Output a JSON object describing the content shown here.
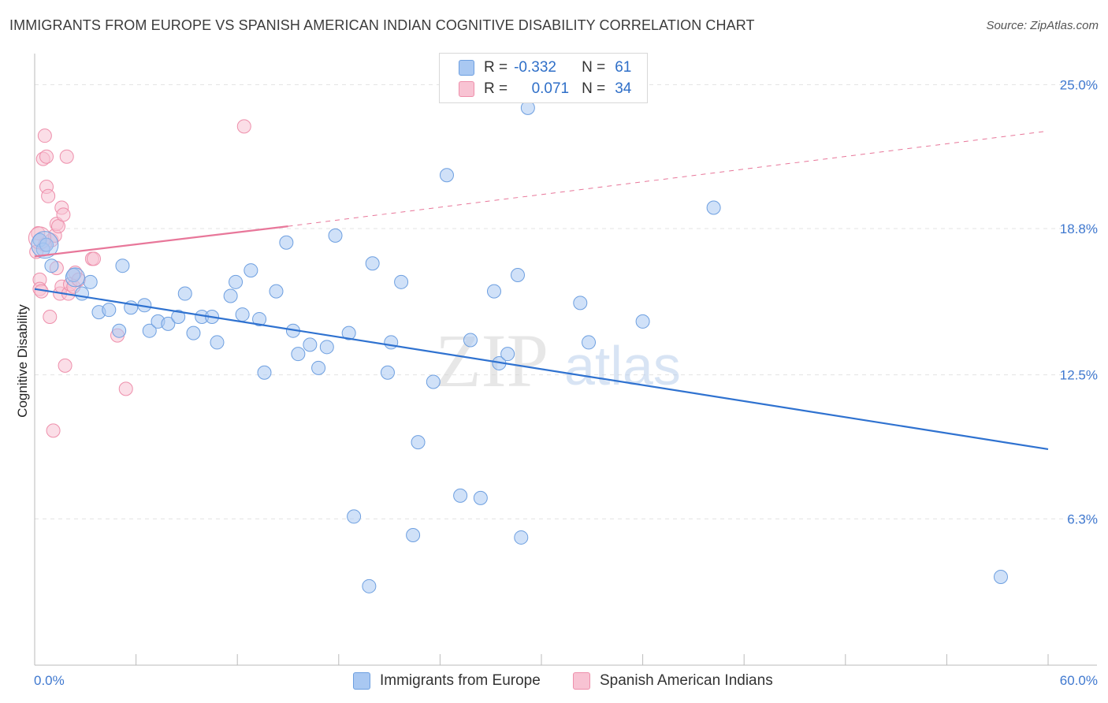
{
  "title": "IMMIGRANTS FROM EUROPE VS SPANISH AMERICAN INDIAN COGNITIVE DISABILITY CORRELATION CHART",
  "source": "Source: ZipAtlas.com",
  "watermark": {
    "zip": "ZIP",
    "atlas": "atlas"
  },
  "legend": {
    "rows": [
      {
        "r_label": "R =",
        "r_value": "-0.332",
        "n_label": "N =",
        "n_value": "61",
        "color": "#a9c8f2",
        "border": "#6d9fe0"
      },
      {
        "r_label": "R =",
        "r_value": "0.071",
        "n_label": "N =",
        "n_value": "34",
        "color": "#f8c3d3",
        "border": "#ee8fab"
      }
    ]
  },
  "bottom_legend": [
    {
      "label": "Immigrants from Europe",
      "color": "#a9c8f2",
      "border": "#6d9fe0"
    },
    {
      "label": "Spanish American Indians",
      "color": "#f8c3d3",
      "border": "#ee8fab"
    }
  ],
  "chart_data": {
    "type": "scatter",
    "title": "IMMIGRANTS FROM EUROPE VS SPANISH AMERICAN INDIAN COGNITIVE DISABILITY CORRELATION CHART",
    "xlabel": "",
    "ylabel": "Cognitive Disability",
    "xlim": [
      0,
      60
    ],
    "ylim": [
      0,
      26.2
    ],
    "x_tick_labels": [
      "0.0%",
      "60.0%"
    ],
    "y_ticks": [
      6.3,
      12.5,
      18.8,
      25.0
    ],
    "y_tick_labels": [
      "6.3%",
      "12.5%",
      "18.8%",
      "25.0%"
    ],
    "grid": true,
    "legend_position": "top-center",
    "series": [
      {
        "name": "Immigrants from Europe",
        "color": "#a9c8f2",
        "stroke": "#6d9fe0",
        "trend": {
          "x": [
            0,
            60
          ],
          "y": [
            16.2,
            9.3
          ],
          "color": "#2f72d0",
          "dashed_extension": false
        },
        "points": [
          [
            0.3,
            18.3
          ],
          [
            0.5,
            17.9
          ],
          [
            0.7,
            18.1
          ],
          [
            1.0,
            17.2
          ],
          [
            2.3,
            16.8
          ],
          [
            3.3,
            16.5
          ],
          [
            2.8,
            16.0
          ],
          [
            3.8,
            15.2
          ],
          [
            4.4,
            15.3
          ],
          [
            5.0,
            14.4
          ],
          [
            5.2,
            17.2
          ],
          [
            5.7,
            15.4
          ],
          [
            6.5,
            15.5
          ],
          [
            6.8,
            14.4
          ],
          [
            7.3,
            14.8
          ],
          [
            7.9,
            14.7
          ],
          [
            8.5,
            15.0
          ],
          [
            8.9,
            16.0
          ],
          [
            9.4,
            14.3
          ],
          [
            9.9,
            15.0
          ],
          [
            10.5,
            15.0
          ],
          [
            10.8,
            13.9
          ],
          [
            11.6,
            15.9
          ],
          [
            11.9,
            16.5
          ],
          [
            12.3,
            15.1
          ],
          [
            12.8,
            17.0
          ],
          [
            13.3,
            14.9
          ],
          [
            13.6,
            12.6
          ],
          [
            14.3,
            16.1
          ],
          [
            14.9,
            18.2
          ],
          [
            15.3,
            14.4
          ],
          [
            15.6,
            13.4
          ],
          [
            16.3,
            13.8
          ],
          [
            16.8,
            12.8
          ],
          [
            17.3,
            13.7
          ],
          [
            17.8,
            18.5
          ],
          [
            18.6,
            14.3
          ],
          [
            18.9,
            6.4
          ],
          [
            19.8,
            3.4
          ],
          [
            20.0,
            17.3
          ],
          [
            20.9,
            12.6
          ],
          [
            21.1,
            13.9
          ],
          [
            21.7,
            16.5
          ],
          [
            22.4,
            5.6
          ],
          [
            22.7,
            9.6
          ],
          [
            23.6,
            12.2
          ],
          [
            24.4,
            21.1
          ],
          [
            25.2,
            7.3
          ],
          [
            25.8,
            14.0
          ],
          [
            26.4,
            7.2
          ],
          [
            27.2,
            16.1
          ],
          [
            27.5,
            13.0
          ],
          [
            28.0,
            13.4
          ],
          [
            28.6,
            16.8
          ],
          [
            28.8,
            5.5
          ],
          [
            29.2,
            24.0
          ],
          [
            32.3,
            15.6
          ],
          [
            32.8,
            13.9
          ],
          [
            36.0,
            14.8
          ],
          [
            40.2,
            19.7
          ],
          [
            57.2,
            3.8
          ]
        ]
      },
      {
        "name": "Spanish American Indians",
        "color": "#f8c3d3",
        "stroke": "#ee8fab",
        "trend": {
          "x": [
            0,
            15
          ],
          "y": [
            17.6,
            18.9
          ],
          "color": "#e8779a",
          "dashed_extension": true,
          "dashed_to": [
            60,
            23.0
          ]
        },
        "points": [
          [
            0.1,
            17.8
          ],
          [
            0.2,
            18.6
          ],
          [
            0.3,
            16.6
          ],
          [
            0.3,
            16.2
          ],
          [
            0.4,
            16.1
          ],
          [
            0.5,
            21.8
          ],
          [
            0.6,
            22.8
          ],
          [
            0.7,
            21.9
          ],
          [
            0.7,
            20.6
          ],
          [
            0.8,
            20.2
          ],
          [
            0.9,
            15.0
          ],
          [
            1.0,
            18.3
          ],
          [
            1.1,
            10.1
          ],
          [
            1.2,
            18.5
          ],
          [
            1.3,
            17.1
          ],
          [
            1.3,
            19.0
          ],
          [
            1.4,
            18.9
          ],
          [
            1.5,
            16.0
          ],
          [
            1.6,
            16.3
          ],
          [
            1.6,
            19.7
          ],
          [
            1.7,
            19.4
          ],
          [
            1.8,
            12.9
          ],
          [
            1.9,
            21.9
          ],
          [
            2.0,
            16.0
          ],
          [
            2.1,
            16.4
          ],
          [
            2.3,
            16.3
          ],
          [
            2.4,
            16.9
          ],
          [
            2.6,
            16.6
          ],
          [
            3.4,
            17.5
          ],
          [
            3.5,
            17.5
          ],
          [
            4.9,
            14.2
          ],
          [
            5.4,
            11.9
          ],
          [
            12.4,
            23.2
          ],
          [
            0.6,
            18.1
          ]
        ]
      }
    ]
  }
}
